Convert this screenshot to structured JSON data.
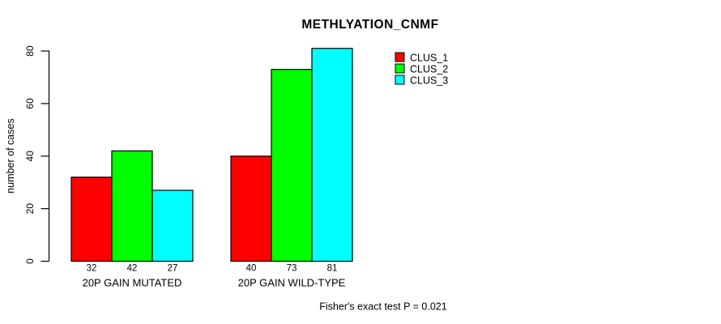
{
  "chart_data": {
    "type": "bar",
    "title": "METHLYATION_CNMF",
    "ylabel": "number of cases",
    "xlabel": "",
    "ylim": [
      0,
      80
    ],
    "yticks": [
      0,
      20,
      40,
      60,
      80
    ],
    "grid": false,
    "categories": [
      "20P GAIN MUTATED",
      "20P GAIN WILD-TYPE"
    ],
    "series": [
      {
        "name": "CLUS_1",
        "color": "#ff0000",
        "values": [
          32,
          40
        ]
      },
      {
        "name": "CLUS_2",
        "color": "#00ff00",
        "values": [
          42,
          73
        ]
      },
      {
        "name": "CLUS_3",
        "color": "#00ffff",
        "values": [
          27,
          81
        ]
      }
    ],
    "value_labels": [
      [
        32,
        42,
        27
      ],
      [
        40,
        73,
        81
      ]
    ],
    "annotation": "Fisher's exact test P = 0.021",
    "legend": {
      "position": "top-right",
      "entries": [
        "CLUS_1",
        "CLUS_2",
        "CLUS_3"
      ]
    },
    "colors": {
      "background": "#ffffff",
      "bar_border": "#000000",
      "axis": "#000000",
      "text": "#000000"
    }
  }
}
